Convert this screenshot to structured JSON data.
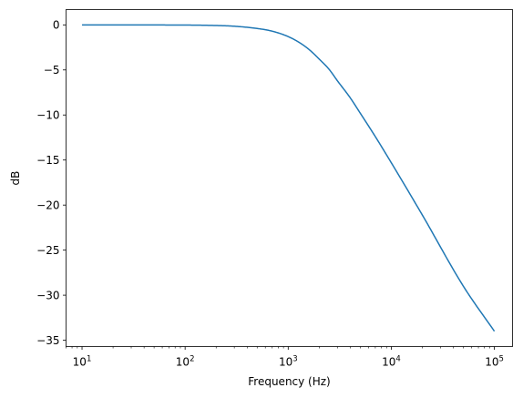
{
  "chart_data": {
    "type": "line",
    "title": "",
    "xlabel": "Frequency (Hz)",
    "ylabel": "dB",
    "xscale": "log",
    "xlim": [
      7,
      150000
    ],
    "ylim": [
      -35.7,
      1.7
    ],
    "grid": false,
    "x_ticks": [
      {
        "base": "10",
        "exp": "1",
        "value": 10
      },
      {
        "base": "10",
        "exp": "2",
        "value": 100
      },
      {
        "base": "10",
        "exp": "3",
        "value": 1000
      },
      {
        "base": "10",
        "exp": "4",
        "value": 10000
      },
      {
        "base": "10",
        "exp": "5",
        "value": 100000
      }
    ],
    "y_ticks": [
      {
        "label": "0",
        "value": 0
      },
      {
        "label": "−5",
        "value": -5
      },
      {
        "label": "−10",
        "value": -10
      },
      {
        "label": "−15",
        "value": -15
      },
      {
        "label": "−20",
        "value": -20
      },
      {
        "label": "−25",
        "value": -25
      },
      {
        "label": "−30",
        "value": -30
      },
      {
        "label": "−35",
        "value": -35
      }
    ],
    "series": [
      {
        "color": "#1f77b4",
        "x": [
          10,
          20,
          50,
          100,
          200,
          300,
          500,
          700,
          1000,
          1300,
          1600,
          2000,
          2500,
          3000,
          4000,
          5000,
          7000,
          10000,
          20000,
          50000,
          100000
        ],
        "y": [
          0,
          0,
          -0.01,
          -0.02,
          -0.07,
          -0.15,
          -0.4,
          -0.7,
          -1.3,
          -2.0,
          -2.75,
          -3.8,
          -4.95,
          -6.2,
          -8.1,
          -9.8,
          -12.4,
          -15.3,
          -21.1,
          -29.0,
          -34.0
        ]
      }
    ]
  }
}
